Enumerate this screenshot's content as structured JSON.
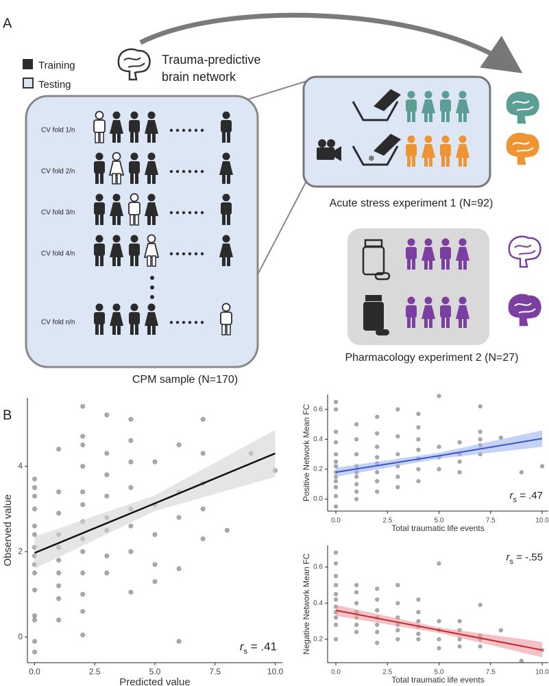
{
  "panel_a": {
    "label": "A",
    "legend": [
      "Training",
      "Testing"
    ],
    "network": [
      "Trauma-predictive",
      "brain network"
    ],
    "cv_folds": [
      "CV fold 1/n",
      "CV fold 2/n",
      "CV fold 3/n",
      "CV fold 4/n",
      "CV fold n/n"
    ],
    "cpm": "CPM sample (N=170)",
    "exp1": "Acute stress experiment 1 (N=92)",
    "exp2": "Pharmacology experiment 2 (N=27)"
  },
  "panel_b": {
    "label": "B"
  },
  "chart_data": [
    {
      "type": "scatter",
      "xlabel": "Predicted value",
      "ylabel": "Observed value",
      "xlim": [
        -0.3,
        10.3
      ],
      "ylim": [
        -0.6,
        5.6
      ],
      "xticks": [
        {
          "value": 0,
          "label": "0.0"
        },
        {
          "value": 2.5,
          "label": "2.5"
        },
        {
          "value": 5,
          "label": "5.0"
        },
        {
          "value": 7.5,
          "label": "7.5"
        },
        {
          "value": 10,
          "label": "10.0"
        }
      ],
      "yticks": [
        0,
        2,
        4
      ],
      "series": [
        {
          "color": "#555555",
          "x": [
            0,
            0,
            0,
            0,
            0,
            0,
            0,
            0,
            0,
            0,
            0,
            0,
            0,
            0,
            0,
            1,
            1,
            1,
            1,
            1,
            1,
            1,
            1,
            1,
            1,
            2,
            2,
            2,
            2,
            2,
            2,
            2,
            2,
            2,
            2,
            2,
            2,
            2,
            3,
            3,
            3,
            3,
            3,
            3,
            3,
            3,
            4,
            4,
            4,
            4,
            4,
            4,
            4,
            4,
            5,
            5,
            5,
            5,
            5,
            6,
            6,
            6,
            6,
            6,
            7,
            7,
            7,
            7,
            7,
            8,
            9,
            10
          ],
          "y": [
            -0.35,
            -0.1,
            0.4,
            0.5,
            1.1,
            1.5,
            1.7,
            1.9,
            2.1,
            2.4,
            2.6,
            3.0,
            3.3,
            3.5,
            3.7,
            0.4,
            0.9,
            1.2,
            1.5,
            1.8,
            2.1,
            2.4,
            2.9,
            3.4,
            4.4,
            0.05,
            0.6,
            1.0,
            1.5,
            2.0,
            2.3,
            2.7,
            3.1,
            3.4,
            4.0,
            4.5,
            4.7,
            5.4,
            1.5,
            1.9,
            2.5,
            2.8,
            3.3,
            3.8,
            4.3,
            5.2,
            1.05,
            2.0,
            2.6,
            3.0,
            3.5,
            4.1,
            4.6,
            5.1,
            1.3,
            1.7,
            2.4,
            3.1,
            4.1,
            -0.1,
            1.6,
            2.8,
            3.4,
            4.5,
            2.3,
            3.0,
            3.6,
            4.3,
            5.1,
            2.5,
            4.3,
            3.9
          ]
        }
      ],
      "fit": {
        "x": [
          0,
          5,
          10
        ],
        "y": [
          1.97,
          3.13,
          4.3
        ],
        "lower": [
          1.6,
          2.95,
          3.75
        ],
        "upper": [
          2.35,
          3.32,
          4.85
        ],
        "color": "#111111",
        "band_color": "#d4d4d4"
      },
      "annotation": {
        "r": "r",
        "sub": "s",
        "rest": " = .41"
      },
      "annotation_corner": "lower right"
    },
    {
      "type": "scatter",
      "xlabel": "Total traumatic life events",
      "ylabel": "Positive Network Mean FC",
      "xlim": [
        -0.4,
        10.3
      ],
      "ylim": [
        -0.08,
        0.7
      ],
      "xticks": [
        {
          "value": 0,
          "label": "0.0"
        },
        {
          "value": 2.5,
          "label": "2.5"
        },
        {
          "value": 5,
          "label": "5.0"
        },
        {
          "value": 7.5,
          "label": "7.5"
        },
        {
          "value": 10,
          "label": "10.0"
        }
      ],
      "yticks": [
        {
          "value": 0,
          "label": "0.0"
        },
        {
          "value": 0.2,
          "label": "0.2"
        },
        {
          "value": 0.4,
          "label": "0.4"
        },
        {
          "value": 0.6,
          "label": "0.6"
        }
      ],
      "series": [
        {
          "color": "#555555",
          "x": [
            0,
            0,
            0,
            0,
            0,
            0,
            0,
            0,
            0,
            0,
            0,
            0,
            0,
            1,
            1,
            1,
            1,
            1,
            1,
            1,
            1,
            1,
            2,
            2,
            2,
            2,
            2,
            2,
            2,
            2,
            3,
            3,
            3,
            3,
            3,
            3,
            4,
            4,
            4,
            4,
            4,
            4,
            4,
            5,
            5,
            5,
            5,
            6,
            6,
            6,
            6,
            7,
            7,
            7,
            7,
            7,
            8,
            9,
            10
          ],
          "y": [
            -0.05,
            0.02,
            0.08,
            0.12,
            0.15,
            0.18,
            0.22,
            0.25,
            0.3,
            0.38,
            0.45,
            0.6,
            0.65,
            0.0,
            0.05,
            0.1,
            0.15,
            0.18,
            0.22,
            0.3,
            0.4,
            0.5,
            0.05,
            0.12,
            0.18,
            0.24,
            0.28,
            0.35,
            0.44,
            0.55,
            0.08,
            0.15,
            0.22,
            0.3,
            0.42,
            0.6,
            0.12,
            0.2,
            0.27,
            0.33,
            0.4,
            0.48,
            0.57,
            0.2,
            0.28,
            0.35,
            0.69,
            0.18,
            0.25,
            0.3,
            0.38,
            0.3,
            0.36,
            0.4,
            0.45,
            0.62,
            0.41,
            0.18,
            0.22
          ]
        }
      ],
      "fit": {
        "x": [
          0,
          5,
          10
        ],
        "y": [
          0.18,
          0.29,
          0.405
        ],
        "lower": [
          0.15,
          0.27,
          0.35
        ],
        "upper": [
          0.21,
          0.31,
          0.46
        ],
        "color": "#3a55c4",
        "band_color": "#9fb3ee"
      },
      "annotation": {
        "r": "r",
        "sub": "s",
        "rest": " = .47"
      },
      "annotation_corner": "lower right"
    },
    {
      "type": "scatter",
      "xlabel": "Total traumatic life events",
      "ylabel": "Negative Network Mean FC",
      "xlim": [
        -0.4,
        10.3
      ],
      "ylim": [
        0.07,
        0.72
      ],
      "xticks": [
        {
          "value": 0,
          "label": "0.0"
        },
        {
          "value": 2.5,
          "label": "2.5"
        },
        {
          "value": 5,
          "label": "5.0"
        },
        {
          "value": 7.5,
          "label": "7.5"
        },
        {
          "value": 10,
          "label": "10.0"
        }
      ],
      "yticks": [
        {
          "value": 0.2,
          "label": "0.2"
        },
        {
          "value": 0.4,
          "label": "0.4"
        },
        {
          "value": 0.6,
          "label": "0.6"
        }
      ],
      "series": [
        {
          "color": "#555555",
          "x": [
            0,
            0,
            0,
            0,
            0,
            0,
            0,
            0,
            0,
            0,
            0,
            1,
            1,
            1,
            1,
            1,
            1,
            1,
            2,
            2,
            2,
            2,
            2,
            2,
            2,
            3,
            3,
            3,
            3,
            3,
            3,
            4,
            4,
            4,
            4,
            4,
            4,
            5,
            5,
            5,
            5,
            5,
            6,
            6,
            6,
            6,
            7,
            7,
            7,
            7,
            8,
            9,
            10
          ],
          "y": [
            0.2,
            0.28,
            0.32,
            0.35,
            0.38,
            0.42,
            0.45,
            0.5,
            0.55,
            0.62,
            0.68,
            0.24,
            0.28,
            0.32,
            0.35,
            0.4,
            0.46,
            0.5,
            0.18,
            0.24,
            0.28,
            0.32,
            0.36,
            0.42,
            0.48,
            0.2,
            0.25,
            0.28,
            0.32,
            0.4,
            0.5,
            0.2,
            0.23,
            0.27,
            0.3,
            0.35,
            0.42,
            0.15,
            0.2,
            0.25,
            0.3,
            0.62,
            0.16,
            0.2,
            0.25,
            0.3,
            0.16,
            0.2,
            0.22,
            0.39,
            0.25,
            0.08,
            0.14
          ]
        }
      ],
      "fit": {
        "x": [
          0,
          5,
          10
        ],
        "y": [
          0.36,
          0.25,
          0.14
        ],
        "lower": [
          0.33,
          0.235,
          0.1
        ],
        "upper": [
          0.39,
          0.265,
          0.185
        ],
        "color": "#c0282e",
        "band_color": "#ec9aa0"
      },
      "annotation": {
        "r": "r",
        "sub": "s",
        "rest": " = -.55"
      },
      "annotation_corner": "upper right"
    }
  ]
}
